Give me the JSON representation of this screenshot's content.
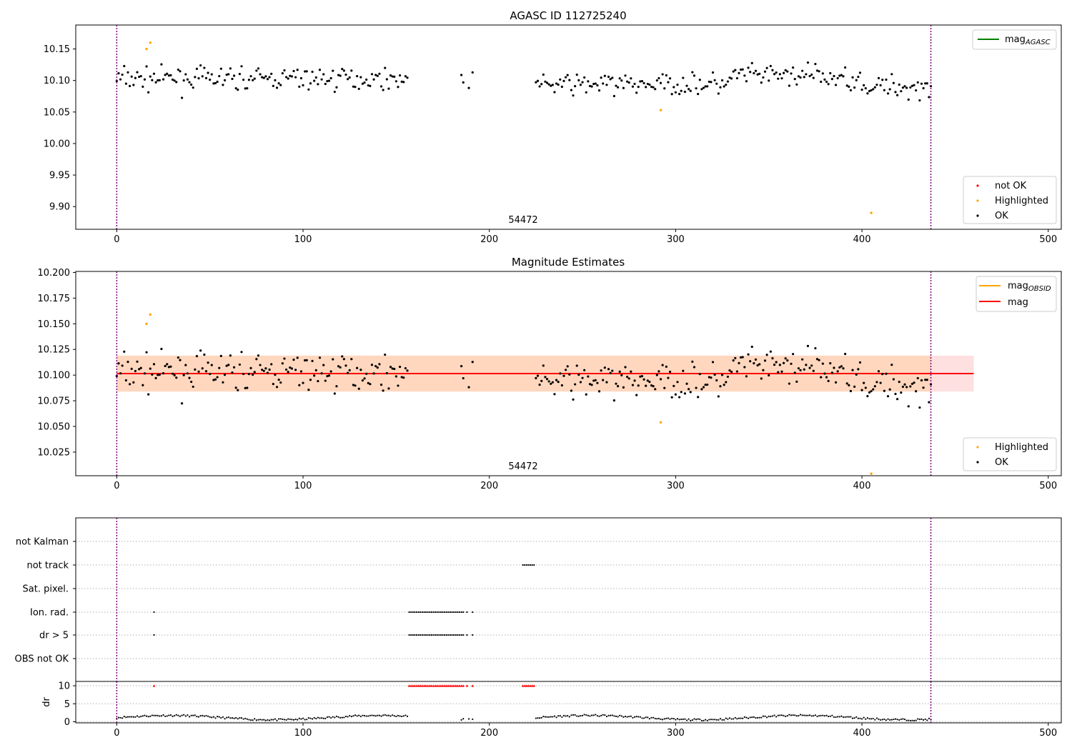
{
  "chart_data": [
    {
      "panel": "agasc",
      "type": "scatter",
      "title": "AGASC ID 112725240",
      "annotation": "54472",
      "xlim": [
        -22,
        507
      ],
      "ylim": [
        9.864,
        10.188
      ],
      "xticks": [
        0,
        100,
        200,
        300,
        400,
        500
      ],
      "yticks": [
        9.9,
        9.95,
        10.0,
        10.05,
        10.1,
        10.15
      ],
      "ytick_labels": [
        "9.90",
        "9.95",
        "10.00",
        "10.05",
        "10.10",
        "10.15"
      ],
      "vlines": [
        0,
        437
      ],
      "legend_lines": [
        {
          "name": "mag",
          "sub": "AGASC",
          "color": "#008000"
        }
      ],
      "legend_markers": [
        {
          "name": "not OK",
          "color": "#ff0000"
        },
        {
          "name": "Highlighted",
          "color": "#ffa500"
        },
        {
          "name": "OK",
          "color": "#000000"
        }
      ],
      "series": [
        {
          "name": "Highlighted",
          "color": "#ffa500",
          "points": [
            [
              16,
              10.15
            ],
            [
              18,
              10.16
            ],
            [
              292,
              10.053
            ],
            [
              405,
              9.89
            ]
          ]
        }
      ]
    },
    {
      "panel": "estimates",
      "type": "scatter",
      "title": "Magnitude Estimates",
      "annotation": "54472",
      "xlim": [
        -22,
        507
      ],
      "ylim": [
        10.002,
        10.201
      ],
      "xticks": [
        0,
        100,
        200,
        300,
        400,
        500
      ],
      "yticks": [
        10.025,
        10.05,
        10.075,
        10.1,
        10.125,
        10.15,
        10.175,
        10.2
      ],
      "ytick_labels": [
        "10.025",
        "10.050",
        "10.075",
        "10.100",
        "10.125",
        "10.150",
        "10.175",
        "10.200"
      ],
      "vlines": [
        0,
        437
      ],
      "mag": 10.1015,
      "band_outer": [
        10.084,
        10.119
      ],
      "band_outer_x": [
        0,
        460
      ],
      "band_inner": [
        10.084,
        10.119
      ],
      "band_inner_x": [
        0,
        437
      ],
      "legend_lines": [
        {
          "name": "mag",
          "sub": "OBSID",
          "color": "#ffa500"
        },
        {
          "name": "mag",
          "sub": "",
          "color": "#ff0000"
        }
      ],
      "legend_markers": [
        {
          "name": "Highlighted",
          "color": "#ffa500"
        },
        {
          "name": "OK",
          "color": "#000000"
        }
      ],
      "series": [
        {
          "name": "Highlighted",
          "color": "#ffa500",
          "points": [
            [
              16,
              10.15
            ],
            [
              18,
              10.159
            ],
            [
              292,
              10.054
            ],
            [
              405,
              10.004
            ]
          ]
        }
      ]
    },
    {
      "panel": "flags",
      "type": "scatter",
      "xlim": [
        -22,
        507
      ],
      "categories": [
        "not Kalman",
        "not track",
        "Sat. pixel.",
        "Ion. rad.",
        "dr > 5",
        "OBS not OK"
      ],
      "vlines": [
        0,
        437
      ],
      "segments": {
        "not track": [
          [
            218,
            224
          ]
        ],
        "Ion. rad.": [
          [
            20,
            20
          ],
          [
            157,
            186
          ],
          [
            188,
            188
          ],
          [
            191,
            191
          ]
        ],
        "dr > 5": [
          [
            20,
            20
          ],
          [
            157,
            186
          ],
          [
            188,
            188
          ],
          [
            191,
            191
          ]
        ]
      }
    },
    {
      "panel": "dr",
      "type": "scatter",
      "ylabel": "dr",
      "xlim": [
        -22,
        507
      ],
      "ylim": [
        -0.3,
        11.2
      ],
      "xticks": [
        0,
        100,
        200,
        300,
        400,
        500
      ],
      "yticks": [
        0,
        5,
        10
      ],
      "vlines": [
        0,
        437
      ],
      "clipped_value": 10,
      "clipped_x": [
        [
          20,
          20
        ],
        [
          157,
          186
        ],
        [
          188,
          188
        ],
        [
          191,
          191
        ],
        [
          218,
          224
        ]
      ]
    }
  ]
}
